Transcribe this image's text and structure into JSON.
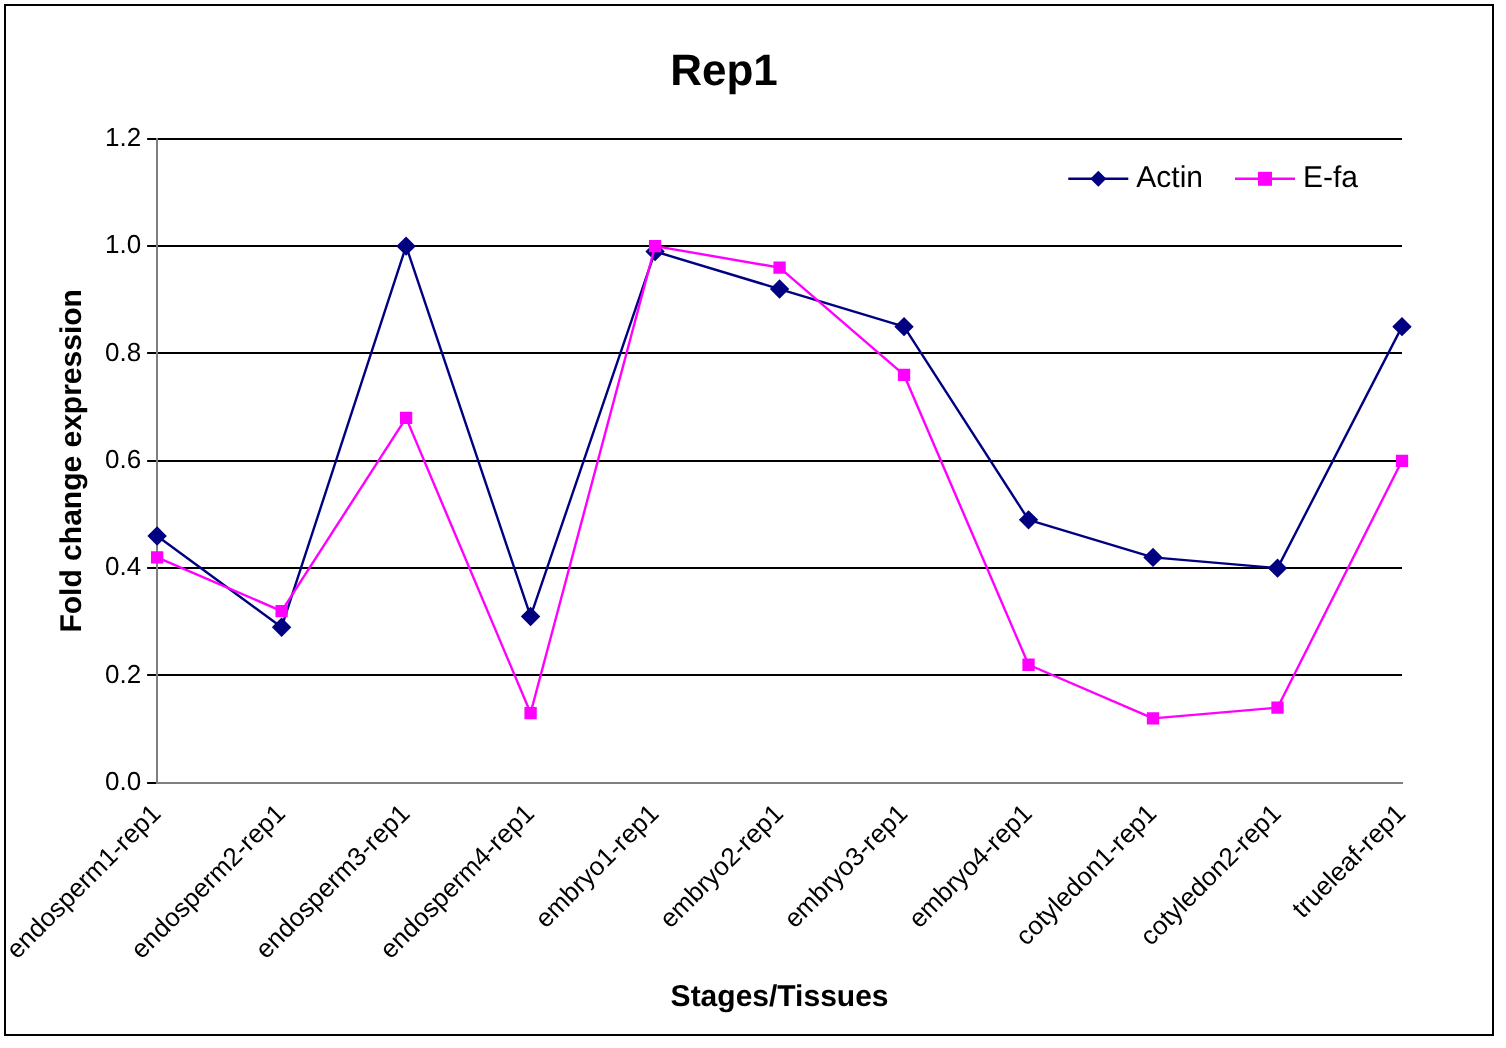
{
  "chart_data": {
    "type": "line",
    "title": "Rep1",
    "xlabel": "Stages/Tissues",
    "ylabel": "Fold change expression",
    "categories": [
      "endosperm1-rep1",
      "endosperm2-rep1",
      "endosperm3-rep1",
      "endosperm4-rep1",
      "embryo1-rep1",
      "embryo2-rep1",
      "embryo3-rep1",
      "embryo4-rep1",
      "cotyledon1-rep1",
      "cotyledon2-rep1",
      "trueleaf-rep1"
    ],
    "series": [
      {
        "name": "Actin",
        "color": "#000080",
        "marker": "diamond",
        "values": [
          0.46,
          0.29,
          1.0,
          0.31,
          0.99,
          0.92,
          0.85,
          0.49,
          0.42,
          0.4,
          0.85
        ]
      },
      {
        "name": "E-fa",
        "color": "#ff00ff",
        "marker": "square",
        "values": [
          0.42,
          0.32,
          0.68,
          0.13,
          1.0,
          0.96,
          0.76,
          0.22,
          0.12,
          0.14,
          0.6
        ]
      }
    ],
    "ylim": [
      0,
      1.2
    ],
    "yticks": [
      {
        "value": 0,
        "label": "0.0"
      },
      {
        "value": 0.2,
        "label": "0.2"
      },
      {
        "value": 0.4,
        "label": "0.4"
      },
      {
        "value": 0.6,
        "label": "0.6"
      },
      {
        "value": 0.8,
        "label": "0.8"
      },
      {
        "value": 1.0,
        "label": "1.0"
      },
      {
        "value": 1.2,
        "label": "1.2"
      }
    ],
    "grid": "y",
    "legend": "top right",
    "line_style": "solid"
  }
}
